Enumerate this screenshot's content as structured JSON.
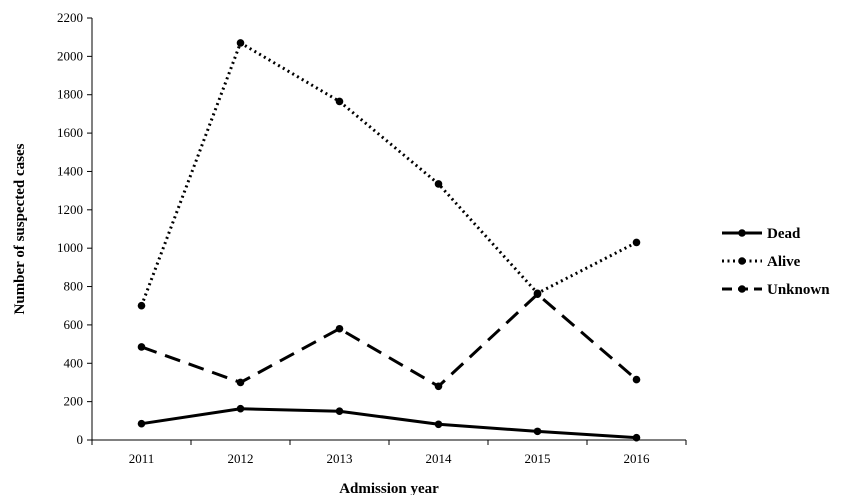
{
  "chart_data": {
    "type": "line",
    "xlabel": "Admission year",
    "ylabel": "Number of suspected cases",
    "categories": [
      "2011",
      "2012",
      "2013",
      "2014",
      "2015",
      "2016"
    ],
    "ylim": [
      0,
      2200
    ],
    "yticks": [
      0,
      200,
      400,
      600,
      800,
      1000,
      1200,
      1400,
      1600,
      1800,
      2000,
      2200
    ],
    "grid": false,
    "legend_position": "right",
    "series": [
      {
        "name": "Dead",
        "style": "solid",
        "color": "#000000",
        "values": [
          85,
          163,
          150,
          82,
          45,
          12
        ]
      },
      {
        "name": "Alive",
        "style": "dotted",
        "color": "#000000",
        "values": [
          700,
          2070,
          1765,
          1335,
          765,
          1030
        ]
      },
      {
        "name": "Unknown",
        "style": "dashed",
        "color": "#000000",
        "values": [
          485,
          300,
          580,
          280,
          760,
          315
        ]
      }
    ]
  }
}
